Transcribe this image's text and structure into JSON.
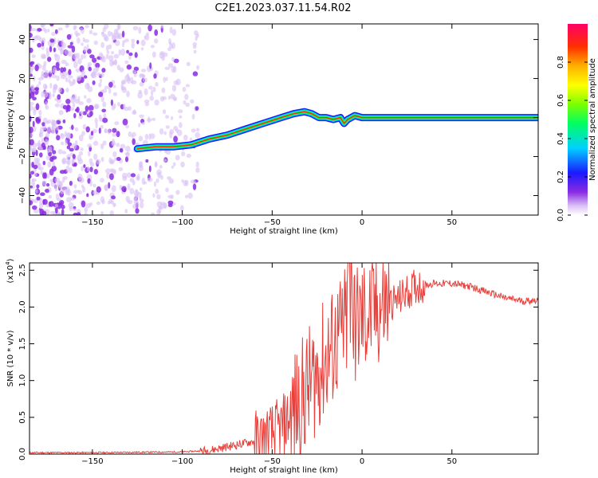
{
  "title": "C2E1.2023.037.11.54.R02",
  "chart_data": [
    {
      "type": "heatmap",
      "xlabel": "Height of straight line (km)",
      "ylabel": "Frequency (Hz)",
      "xlim": [
        -185,
        98
      ],
      "ylim": [
        -50,
        48
      ],
      "xticks": [
        -150,
        -100,
        -50,
        0,
        50
      ],
      "yticks": [
        -40,
        -20,
        0,
        20,
        40
      ],
      "ridge": {
        "x": [
          -125,
          -115,
          -105,
          -95,
          -85,
          -75,
          -65,
          -55,
          -45,
          -38,
          -32,
          -28,
          -24,
          -20,
          -16,
          -12,
          -10,
          -8,
          -4,
          0,
          5,
          12,
          98
        ],
        "frequency_hz": [
          -16,
          -15,
          -15,
          -14,
          -11,
          -9,
          -6,
          -3,
          0,
          2,
          3,
          2,
          0,
          0,
          -1,
          0,
          -3,
          -1,
          1,
          0,
          0,
          0,
          0
        ]
      },
      "colorbar": {
        "label": "Normalized spectral amplitude",
        "range": [
          0.0,
          1.0
        ],
        "ticks": [
          "0.0",
          "0.2",
          "0.4",
          "0.6",
          "0.8"
        ]
      }
    },
    {
      "type": "line",
      "xlabel": "Height of straight line (km)",
      "ylabel": "SNR (10 * v/v)",
      "scale_label": "(x10",
      "scale_exp": "4",
      "xlim": [
        -185,
        98
      ],
      "ylim": [
        0,
        2.6
      ],
      "xticks": [
        -150,
        -100,
        -50,
        0,
        50
      ],
      "yticks": [
        "0.0",
        "0.5",
        "1.0",
        "1.5",
        "2.0",
        "2.5"
      ],
      "series": [
        {
          "name": "SNR",
          "color": "#e8413c",
          "x": [
            -185,
            -150,
            -100,
            -85,
            -75,
            -65,
            -55,
            -50,
            -45,
            -40,
            -35,
            -30,
            -25,
            -20,
            -15,
            -12,
            -10,
            -8,
            -6,
            -4,
            -2,
            0,
            5,
            10,
            15,
            20,
            25,
            30,
            40,
            50,
            60,
            70,
            80,
            90,
            98
          ],
          "y": [
            0.02,
            0.02,
            0.03,
            0.05,
            0.1,
            0.15,
            0.2,
            0.25,
            0.35,
            0.5,
            0.7,
            0.9,
            1.1,
            1.3,
            1.5,
            1.6,
            1.7,
            1.8,
            1.7,
            1.75,
            1.8,
            1.85,
            1.9,
            2.0,
            2.05,
            2.1,
            2.2,
            2.28,
            2.32,
            2.32,
            2.28,
            2.2,
            2.12,
            2.08,
            2.1
          ]
        }
      ]
    }
  ]
}
